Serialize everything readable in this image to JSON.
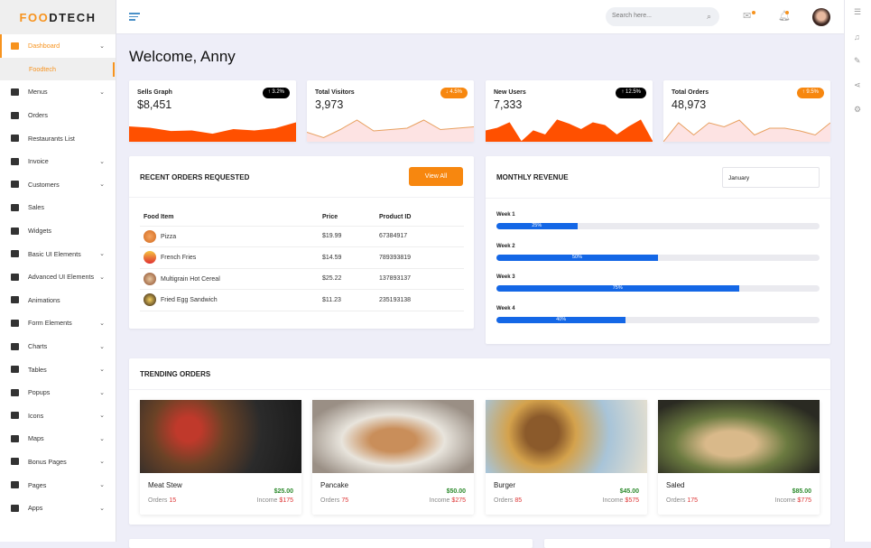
{
  "brand": {
    "logo_text": "FOODTECH",
    "accent": "#f7931e"
  },
  "sidebar": {
    "items": [
      {
        "label": "Dashboard",
        "chevron": true,
        "active": true
      },
      {
        "label": "Foodtech",
        "sub": true
      },
      {
        "label": "Menus",
        "chevron": true
      },
      {
        "label": "Orders"
      },
      {
        "label": "Restaurants List"
      },
      {
        "label": "Invoice",
        "chevron": true
      },
      {
        "label": "Customers",
        "chevron": true
      },
      {
        "label": "Sales"
      },
      {
        "label": "Widgets"
      },
      {
        "label": "Basic UI Elements",
        "chevron": true
      },
      {
        "label": "Advanced UI Elements",
        "chevron": true
      },
      {
        "label": "Animations"
      },
      {
        "label": "Form Elements",
        "chevron": true
      },
      {
        "label": "Charts",
        "chevron": true
      },
      {
        "label": "Tables",
        "chevron": true
      },
      {
        "label": "Popups",
        "chevron": true
      },
      {
        "label": "Icons",
        "chevron": true
      },
      {
        "label": "Maps",
        "chevron": true
      },
      {
        "label": "Bonus Pages",
        "chevron": true
      },
      {
        "label": "Pages",
        "chevron": true
      },
      {
        "label": "Apps",
        "chevron": true
      }
    ]
  },
  "topbar": {
    "search_placeholder": "Search here...",
    "icons": [
      "menu-icon",
      "search-icon",
      "mail-icon",
      "bell-icon",
      "avatar"
    ]
  },
  "rail": {
    "icons": [
      "list-icon",
      "bell-icon",
      "pencil-icon",
      "share-icon",
      "gear-icon"
    ]
  },
  "welcome": "Welcome, Anny",
  "stats": [
    {
      "label": "Sells Graph",
      "value": "$8,451",
      "badge": "3.2%",
      "direction": "up",
      "badge_color": "#000000",
      "fill": "#ff5000",
      "line": "#ff5000",
      "spark": [
        55,
        50,
        38,
        40,
        28,
        45,
        40,
        48,
        70
      ]
    },
    {
      "label": "Total Visitors",
      "value": "3,973",
      "badge": "4.5%",
      "direction": "down",
      "badge_color": "#f7870f",
      "fill": "#fde3e3",
      "line": "#e8a060",
      "spark": [
        35,
        15,
        45,
        80,
        40,
        45,
        50,
        80,
        45,
        50,
        55
      ]
    },
    {
      "label": "New Users",
      "value": "7,333",
      "badge": "12.5%",
      "direction": "up",
      "badge_color": "#000000",
      "fill": "#ff5000",
      "line": "#ff5000",
      "spark": [
        40,
        50,
        70,
        0,
        40,
        25,
        80,
        65,
        45,
        70,
        60,
        25,
        55,
        80,
        0
      ]
    },
    {
      "label": "Total Orders",
      "value": "48,973",
      "badge": "9.5%",
      "direction": "up",
      "badge_color": "#f7870f",
      "fill": "#fde3e3",
      "line": "#e8a060",
      "spark": [
        0,
        70,
        25,
        70,
        55,
        80,
        25,
        50,
        50,
        40,
        25,
        70
      ]
    }
  ],
  "recent_orders": {
    "title": "RECENT ORDERS REQUESTED",
    "view_all": "View All",
    "columns": [
      "Food Item",
      "Price",
      "Product ID"
    ],
    "rows": [
      [
        "Pizza",
        "$19.99",
        "67384917"
      ],
      [
        "French Fries",
        "$14.59",
        "789393819"
      ],
      [
        "Multigrain Hot Cereal",
        "$25.22",
        "137893137"
      ],
      [
        "Fried Egg Sandwich",
        "$11.23",
        "235193138"
      ]
    ]
  },
  "monthly_revenue": {
    "title": "MONTHLY REVENUE",
    "selected_month": "January",
    "weeks": [
      {
        "label": "Week 1",
        "percent": 25,
        "text": "25%"
      },
      {
        "label": "Week 2",
        "percent": 50,
        "text": "50%"
      },
      {
        "label": "Week 3",
        "percent": 75,
        "text": "75%"
      },
      {
        "label": "Week 4",
        "percent": 40,
        "text": "40%"
      }
    ]
  },
  "trending": {
    "title": "TRENDING ORDERS",
    "orders_label": "Orders",
    "income_label": "Income",
    "items": [
      {
        "name": "Meat Stew",
        "price": "$25.00",
        "orders": "15",
        "income": "$175"
      },
      {
        "name": "Pancake",
        "price": "$50.00",
        "orders": "75",
        "income": "$275"
      },
      {
        "name": "Burger",
        "price": "$45.00",
        "orders": "85",
        "income": "$575"
      },
      {
        "name": "Saled",
        "price": "$85.00",
        "orders": "175",
        "income": "$775"
      }
    ]
  }
}
